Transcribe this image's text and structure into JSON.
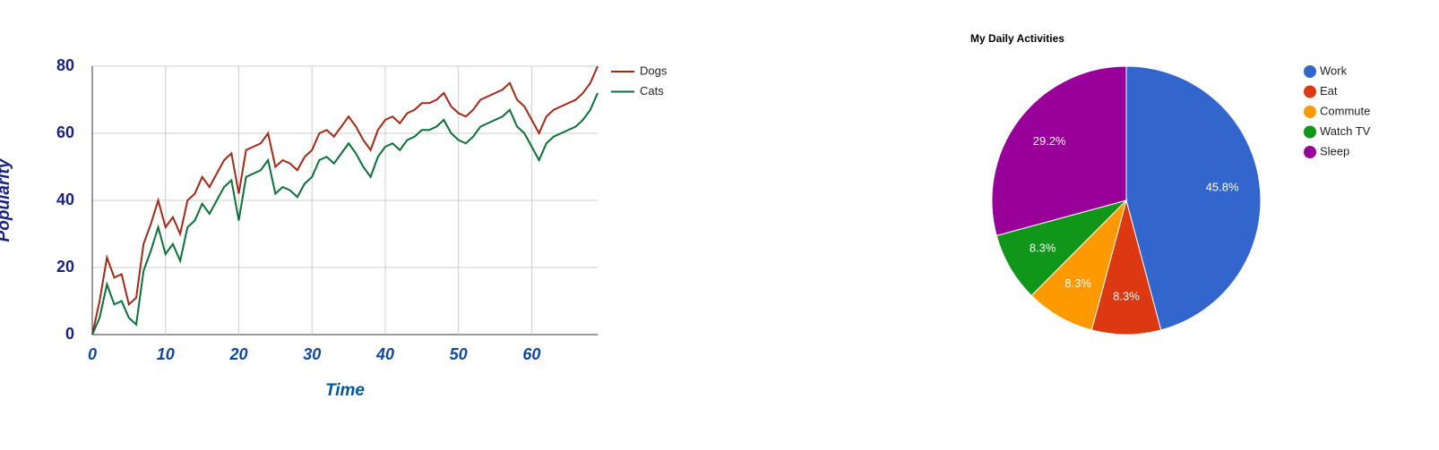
{
  "chart_data": [
    {
      "type": "line",
      "ylabel": "Popularity",
      "xlabel": "Time",
      "x": [
        0,
        1,
        2,
        3,
        4,
        5,
        6,
        7,
        8,
        9,
        10,
        11,
        12,
        13,
        14,
        15,
        16,
        17,
        18,
        19,
        20,
        21,
        22,
        23,
        24,
        25,
        26,
        27,
        28,
        29,
        30,
        31,
        32,
        33,
        34,
        35,
        36,
        37,
        38,
        39,
        40,
        41,
        42,
        43,
        44,
        45,
        46,
        47,
        48,
        49,
        50,
        51,
        52,
        53,
        54,
        55,
        56,
        57,
        58,
        59,
        60,
        61,
        62,
        63,
        64,
        65,
        66,
        67,
        68,
        69
      ],
      "series": [
        {
          "name": "Dogs",
          "color": "#a52714",
          "values": [
            0,
            10,
            23,
            17,
            18,
            9,
            11,
            27,
            33,
            40,
            32,
            35,
            30,
            40,
            42,
            47,
            44,
            48,
            52,
            54,
            42,
            55,
            56,
            57,
            60,
            50,
            52,
            51,
            49,
            53,
            55,
            60,
            61,
            59,
            62,
            65,
            62,
            58,
            55,
            61,
            64,
            65,
            63,
            66,
            67,
            69,
            69,
            70,
            72,
            68,
            66,
            65,
            67,
            70,
            71,
            72,
            73,
            75,
            70,
            68,
            64,
            60,
            65,
            67,
            68,
            69,
            70,
            72,
            75,
            80
          ]
        },
        {
          "name": "Cats",
          "color": "#097138",
          "values": [
            0,
            5,
            15,
            9,
            10,
            5,
            3,
            19,
            25,
            32,
            24,
            27,
            22,
            32,
            34,
            39,
            36,
            40,
            44,
            46,
            34,
            47,
            48,
            49,
            52,
            42,
            44,
            43,
            41,
            45,
            47,
            52,
            53,
            51,
            54,
            57,
            54,
            50,
            47,
            53,
            56,
            57,
            55,
            58,
            59,
            61,
            61,
            62,
            64,
            60,
            58,
            57,
            59,
            62,
            63,
            64,
            65,
            67,
            62,
            60,
            56,
            52,
            57,
            59,
            60,
            61,
            62,
            64,
            67,
            72
          ]
        }
      ],
      "xlim": [
        0,
        69
      ],
      "xticks": [
        0,
        10,
        20,
        30,
        40,
        50,
        60
      ],
      "ylim": [
        0,
        80
      ],
      "yticks": [
        0,
        20,
        40,
        60,
        80
      ],
      "grid": true,
      "legend": "right"
    },
    {
      "type": "pie",
      "title": "My Daily Activities",
      "categories": [
        "Work",
        "Eat",
        "Commute",
        "Watch TV",
        "Sleep"
      ],
      "values": [
        45.8,
        8.3,
        8.3,
        8.3,
        29.2
      ],
      "value_labels": [
        "45.8%",
        "8.3%",
        "8.3%",
        "8.3%",
        "29.2%"
      ],
      "colors": [
        "#3366cc",
        "#dc3912",
        "#ff9900",
        "#109618",
        "#990099"
      ],
      "legend": "right"
    }
  ]
}
